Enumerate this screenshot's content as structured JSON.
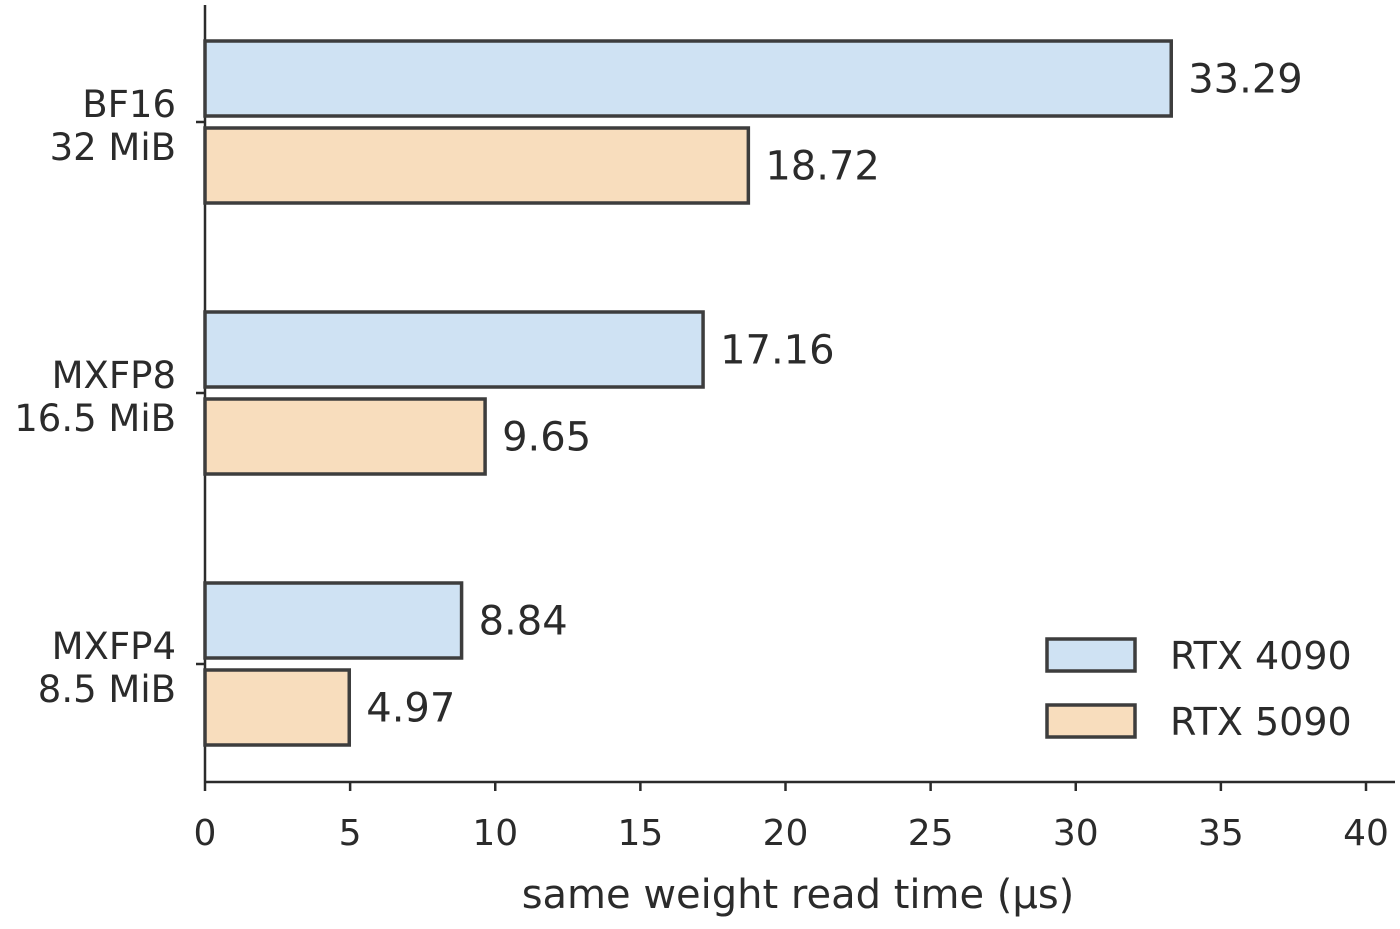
{
  "chart_data": {
    "type": "bar",
    "orientation": "horizontal",
    "categories": [
      {
        "name": "BF16",
        "size": "32 MiB"
      },
      {
        "name": "MXFP8",
        "size": "16.5 MiB"
      },
      {
        "name": "MXFP4",
        "size": "8.5 MiB"
      }
    ],
    "series": [
      {
        "name": "RTX 4090",
        "color": "#cfe2f3",
        "values": [
          33.29,
          17.16,
          8.84
        ],
        "labels": [
          "33.29",
          "17.16",
          "8.84"
        ]
      },
      {
        "name": "RTX 5090",
        "color": "#f8ddbd",
        "values": [
          18.72,
          9.65,
          4.97
        ],
        "labels": [
          "18.72",
          "9.65",
          "4.97"
        ]
      }
    ],
    "xlabel": "same weight read time (µs)",
    "xlim": [
      0,
      40
    ],
    "xticks": [
      "0",
      "5",
      "10",
      "15",
      "20",
      "25",
      "30",
      "35",
      "40"
    ],
    "grid": false,
    "legend_position": "bottom-right"
  }
}
